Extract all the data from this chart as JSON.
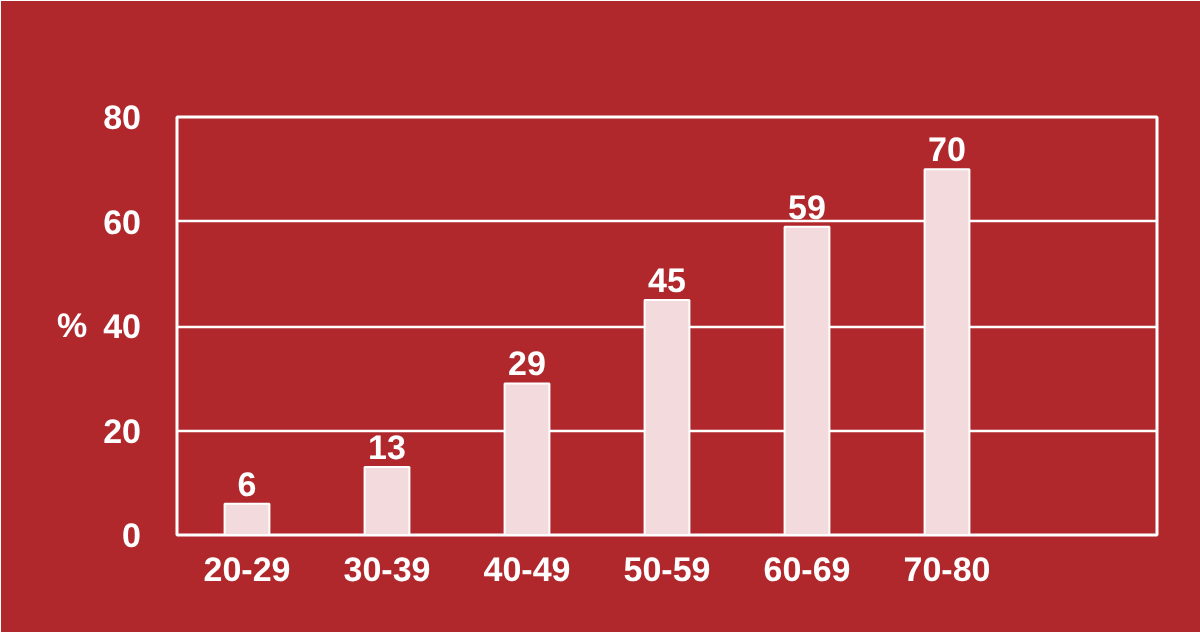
{
  "chart_data": {
    "type": "bar",
    "ylabel": "%",
    "categories": [
      "20-29",
      "30-39",
      "40-49",
      "50-59",
      "60-69",
      "70-80",
      null
    ],
    "values": [
      6,
      13,
      29,
      45,
      59,
      70,
      null
    ],
    "color": "#f2dadd",
    "ylim": [
      0,
      80
    ],
    "yticks": [
      0,
      20,
      40,
      60,
      80
    ],
    "grid": "y",
    "data_labels": true
  }
}
